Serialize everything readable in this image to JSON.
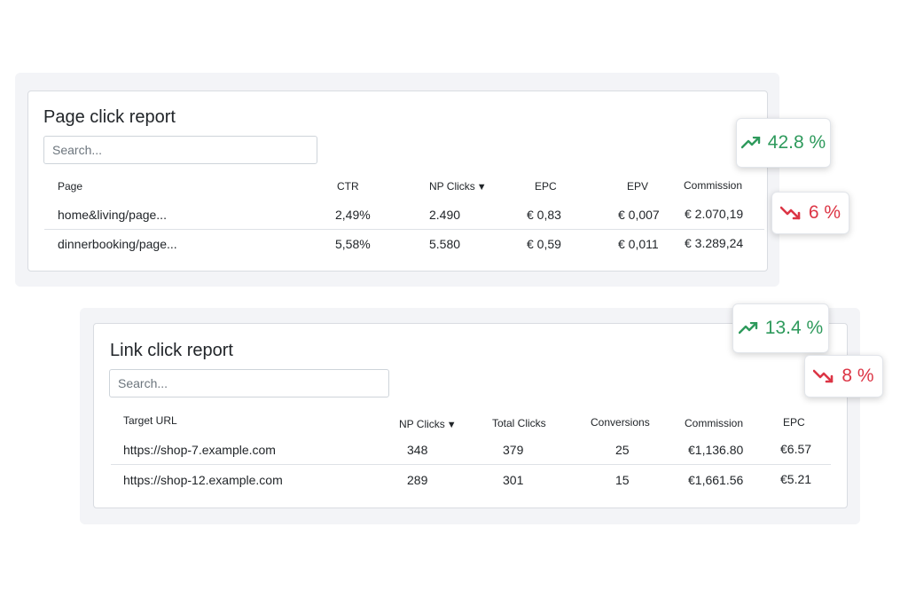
{
  "page_report": {
    "title": "Page click report",
    "search_placeholder": "Search...",
    "columns": [
      "Page",
      "CTR",
      "NP Clicks",
      "EPC",
      "EPV",
      "Commission"
    ],
    "sort_caret": "▼",
    "rows": [
      [
        "home&living/page...",
        "2,49%",
        "2.490",
        "€ 0,83",
        "€ 0,007",
        "€ 2.070,19"
      ],
      [
        "dinnerbooking/page...",
        "5,58%",
        "5.580",
        "€ 0,59",
        "€ 0,011",
        "€ 3.289,24"
      ]
    ]
  },
  "link_report": {
    "title": "Link click report",
    "search_placeholder": "Search...",
    "columns": [
      "Target URL",
      "NP Clicks",
      "Total Clicks",
      "Conversions",
      "Commission",
      "EPC"
    ],
    "sort_caret": "▼",
    "rows": [
      [
        "https://shop-7.example.com",
        "348",
        "379",
        "25",
        "€1,136.80",
        "€6.57"
      ],
      [
        "https://shop-12.example.com",
        "289",
        "301",
        "15",
        "€1,661.56",
        "€5.21"
      ]
    ]
  },
  "badges": {
    "page_up": {
      "text": "42.8 %",
      "icon": "trending-up-icon",
      "color": "#2e9a5c"
    },
    "page_down": {
      "text": "6 %",
      "icon": "trending-down-icon",
      "color": "#dc3545"
    },
    "link_up": {
      "text": "13.4 %",
      "icon": "trending-up-icon",
      "color": "#2e9a5c"
    },
    "link_down": {
      "text": "8 %",
      "icon": "trending-down-icon",
      "color": "#dc3545"
    }
  }
}
